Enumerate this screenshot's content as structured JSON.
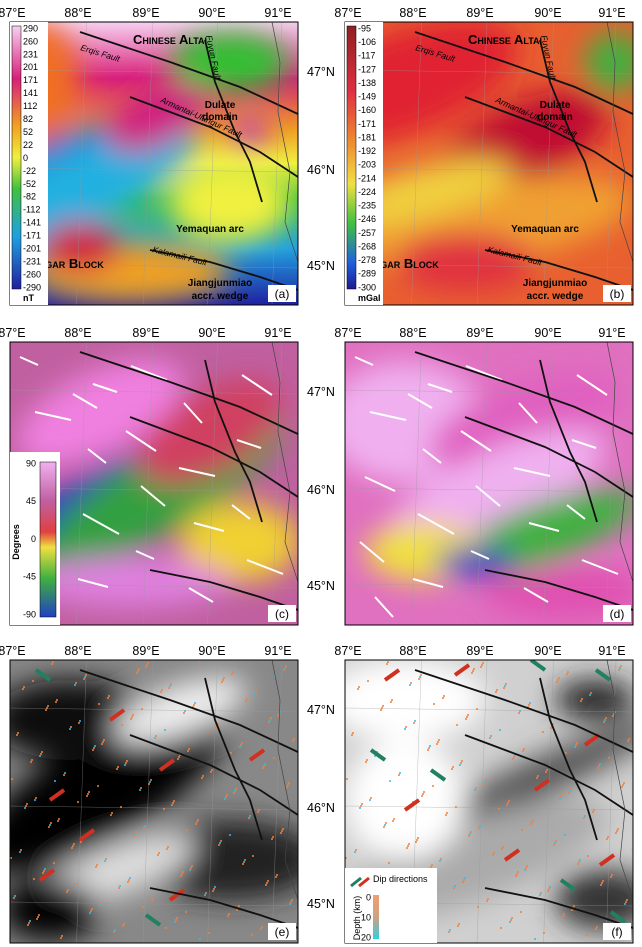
{
  "rows": [
    {
      "lat_labels": [
        "47°N",
        "46°N",
        "45°N"
      ]
    },
    {
      "lat_labels": [
        "47°N",
        "46°N",
        "45°N"
      ]
    },
    {
      "lat_labels": [
        "47°N",
        "46°N",
        "45°N"
      ]
    }
  ],
  "panels": [
    {
      "label": "(a)",
      "lon_labels": [
        "87°E",
        "88°E",
        "89°E",
        "90°E",
        "91°E"
      ],
      "annotations": {
        "altai": "Chinese Altai",
        "erqis": "Erqis Fault",
        "fuyun": "Fuyun Fault",
        "dulate": [
          "Dulate",
          "domain"
        ],
        "armantai": "Armantai-Ulungur Fault",
        "yemaquan": "Yemaquan arc",
        "junggar": "Junggar Block",
        "kalamaili": "Kalamaili Fault",
        "jiangjunmiao": [
          "Jiangjunmiao",
          "accr. wedge"
        ]
      },
      "colorbar": {
        "ticks": [
          290,
          260,
          231,
          201,
          171,
          141,
          112,
          82,
          52,
          22,
          0,
          -22,
          -52,
          -82,
          -112,
          -141,
          -171,
          -201,
          -231,
          -260,
          -290
        ],
        "unit": "nT"
      }
    },
    {
      "label": "(b)",
      "lon_labels": [
        "87°E",
        "88°E",
        "89°E",
        "90°E",
        "91°E"
      ],
      "annotations": {
        "altai": "Chinese Altai",
        "erqis": "Erqis Fault",
        "fuyun": "Fuyun Fault",
        "dulate": [
          "Dulate",
          "domain"
        ],
        "armantai": "Armantai-Ulungur Fault",
        "yemaquan": "Yemaquan arc",
        "junggar": "Junggar Block",
        "kalamaili": "Kalamaili Fault",
        "jiangjunmiao": [
          "Jiangjunmiao",
          "accr. wedge"
        ]
      },
      "colorbar": {
        "ticks": [
          -95,
          -106,
          -117,
          -127,
          -138,
          -149,
          -160,
          -171,
          -181,
          -192,
          -203,
          -214,
          -224,
          -235,
          -246,
          -257,
          -268,
          -278,
          -289,
          -300
        ],
        "unit": "mGal"
      }
    },
    {
      "label": "(c)",
      "lon_labels": [
        "87°E",
        "88°E",
        "89°E",
        "90°E",
        "91°E"
      ],
      "colorbar": {
        "ticks": [
          90,
          45,
          0,
          -45,
          -90
        ],
        "unit": "Degrees"
      }
    },
    {
      "label": "(d)",
      "lon_labels": [
        "87°E",
        "88°E",
        "89°E",
        "90°E",
        "91°E"
      ]
    },
    {
      "label": "(e)",
      "lon_labels": [
        "87°E",
        "88°E",
        "89°E",
        "90°E",
        "91°E"
      ]
    },
    {
      "label": "(f)",
      "lon_labels": [
        "87°E",
        "88°E",
        "89°E",
        "90°E",
        "91°E"
      ],
      "legend": {
        "arrows": "Dip directions",
        "depth": "Depth (km)",
        "ticks": [
          0,
          10,
          20
        ]
      }
    }
  ]
}
